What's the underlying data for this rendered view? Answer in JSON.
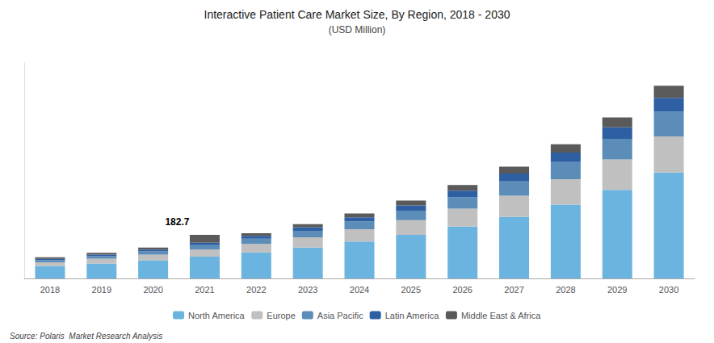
{
  "chart_data": {
    "type": "bar",
    "title": "Interactive Patient Care Market Size, By Region, 2018 - 2030",
    "subtitle": "(USD Million)",
    "source": "Source: Polaris  Market Research Analysis",
    "categories": [
      "2018",
      "2019",
      "2020",
      "2021",
      "2022",
      "2023",
      "2024",
      "2025",
      "2026",
      "2027",
      "2028",
      "2029",
      "2030"
    ],
    "series": [
      {
        "name": "North America",
        "color": "#6cb4e0",
        "values": [
          52,
          63,
          76,
          92,
          109,
          130,
          155,
          183,
          218,
          259,
          310,
          372,
          445
        ]
      },
      {
        "name": "Europe",
        "color": "#c0c0c0",
        "values": [
          16,
          20,
          24,
          30,
          36,
          43,
          52,
          62,
          75,
          89,
          107,
          128,
          152
        ]
      },
      {
        "name": "Asia Pacific",
        "color": "#5b8db8",
        "values": [
          9,
          11,
          14,
          18,
          22,
          27,
          32,
          40,
          49,
          60,
          72,
          87,
          104
        ]
      },
      {
        "name": "Latin America",
        "color": "#2e5fa3",
        "values": [
          5,
          6,
          7,
          10,
          12,
          15,
          18,
          22,
          27,
          33,
          40,
          48,
          58
        ]
      },
      {
        "name": "Middle East & Africa",
        "color": "#5a5a5a",
        "values": [
          7,
          8,
          9,
          33,
          11,
          13,
          16,
          20,
          24,
          29,
          35,
          42,
          51
        ]
      }
    ],
    "stacked": true,
    "ylim": [
      0,
      905.7128
    ],
    "tick_labels": "x",
    "grid": false,
    "legend": "bottom",
    "annotations": [
      {
        "text": "182.7",
        "category": "2021",
        "y": 182.7
      }
    ]
  }
}
